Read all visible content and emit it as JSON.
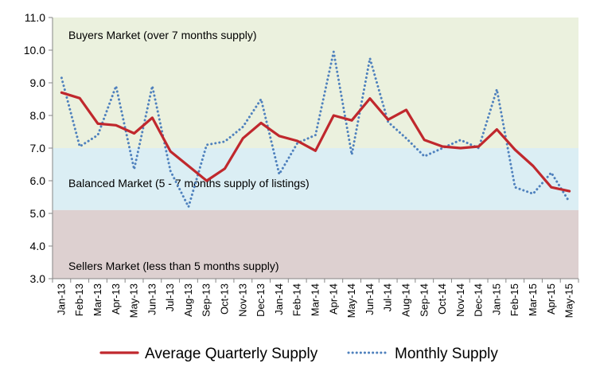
{
  "chart_data": {
    "type": "line",
    "title": "",
    "xlabel": "",
    "ylabel": "",
    "ylim": [
      3.0,
      11.0
    ],
    "yticks": [
      "3.0",
      "4.0",
      "5.0",
      "6.0",
      "7.0",
      "8.0",
      "9.0",
      "10.0",
      "11.0"
    ],
    "categories": [
      "Jan-13",
      "Feb-13",
      "Mar-13",
      "Apr-13",
      "May-13",
      "Jun-13",
      "Jul-13",
      "Aug-13",
      "Sep-13",
      "Oct-13",
      "Nov-13",
      "Dec-13",
      "Jan-14",
      "Feb-14",
      "Mar-14",
      "Apr-14",
      "May-14",
      "Jun-14",
      "Jul-14",
      "Aug-14",
      "Sep-14",
      "Oct-14",
      "Nov-14",
      "Dec-14",
      "Jan-15",
      "Feb-15",
      "Mar-15",
      "Apr-15",
      "May-15"
    ],
    "bands": [
      {
        "label": "Buyers Market (over 7 months supply)",
        "from": 7.0,
        "to": 11.0,
        "color": "#ebf1de"
      },
      {
        "label": "Balanced Market (5 - 7 months supply of listings)",
        "from": 5.1,
        "to": 7.0,
        "color": "#dbeef4"
      },
      {
        "label": "Sellers Market (less than 5 months supply)",
        "from": 3.0,
        "to": 5.1,
        "color": "#ddd0d0"
      }
    ],
    "series": [
      {
        "name": "Average Quarterly Supply",
        "color": "#c0282d",
        "style": "solid",
        "values": [
          8.7,
          8.53,
          7.75,
          7.7,
          7.45,
          7.93,
          6.9,
          6.45,
          6.0,
          6.37,
          7.3,
          7.77,
          7.37,
          7.22,
          6.92,
          8.0,
          7.85,
          8.52,
          7.87,
          8.17,
          7.25,
          7.05,
          7.0,
          7.05,
          7.57,
          6.95,
          6.45,
          5.8,
          5.68
        ]
      },
      {
        "name": "Monthly Supply",
        "color": "#4f81bd",
        "style": "dotted",
        "values": [
          9.15,
          7.05,
          7.4,
          8.9,
          6.35,
          8.9,
          6.3,
          5.2,
          7.1,
          7.2,
          7.65,
          8.5,
          6.2,
          7.15,
          7.4,
          9.95,
          6.8,
          9.75,
          7.8,
          7.3,
          6.75,
          7.0,
          7.25,
          7.0,
          8.8,
          5.8,
          5.6,
          6.25,
          5.35
        ]
      }
    ],
    "grid": false,
    "legend": "bottom"
  }
}
